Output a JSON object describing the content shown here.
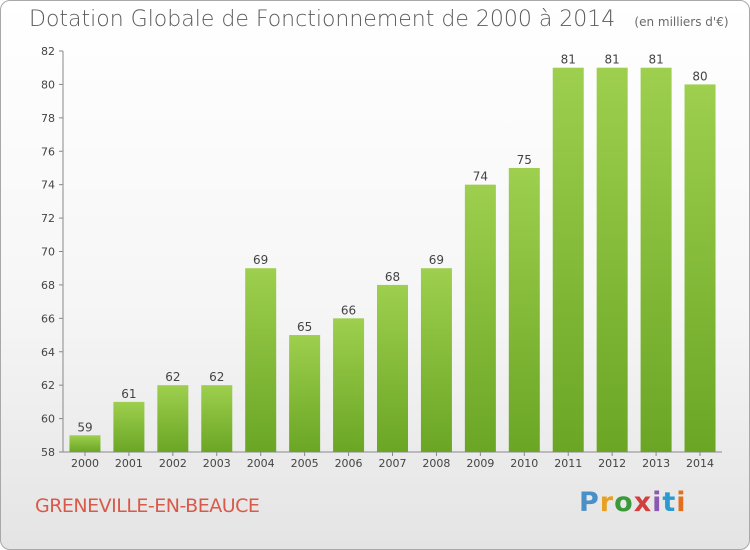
{
  "header": {
    "title": "Dotation Globale de Fonctionnement de 2000 à 2014",
    "subtitle": "(en milliers d'€)"
  },
  "footer": {
    "commune": "GRENEVILLE-EN-BEAUCE",
    "brand": "Proxiti"
  },
  "colors": {
    "bar_top": "#9ecf4e",
    "bar_bottom": "#6aa624",
    "commune_text": "#d95a4a"
  },
  "chart_data": {
    "type": "bar",
    "title": "Dotation Globale de Fonctionnement de 2000 à 2014",
    "subtitle": "(en milliers d'€)",
    "categories": [
      "2000",
      "2001",
      "2002",
      "2003",
      "2004",
      "2005",
      "2006",
      "2007",
      "2008",
      "2009",
      "2010",
      "2011",
      "2012",
      "2013",
      "2014"
    ],
    "values": [
      59,
      61,
      62,
      62,
      69,
      65,
      66,
      68,
      69,
      74,
      75,
      81,
      81,
      81,
      80
    ],
    "ylim": [
      58,
      82
    ],
    "yticks": [
      58,
      60,
      62,
      64,
      66,
      68,
      70,
      72,
      74,
      76,
      78,
      80,
      82
    ],
    "xlabel": "",
    "ylabel": "",
    "grid": false,
    "data_labels": true
  }
}
